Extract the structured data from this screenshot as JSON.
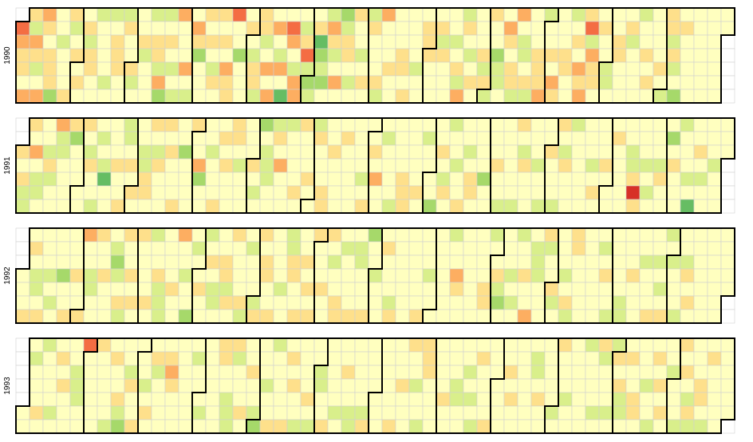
{
  "chart_data": {
    "type": "heatmap",
    "layout": "calendar",
    "years": [
      "1990",
      "1991",
      "1992",
      "1993"
    ],
    "week_start": "sunday",
    "color_scale": [
      "#1a9850",
      "#66bd63",
      "#a6d96a",
      "#d9ef8b",
      "#ffffbf",
      "#fee08b",
      "#fdae61",
      "#f46d43",
      "#d73027"
    ],
    "color_levels": [
      -4,
      -3,
      -2,
      -1,
      0,
      1,
      2,
      3,
      4
    ],
    "empty_color": "#ffffff",
    "grid_color": "#d0d0d0",
    "border_color": "#000000",
    "values_by_year": {
      "1990": [
        3,
        2,
        1,
        1,
        0,
        2,
        1,
        -1,
        2,
        1,
        -1,
        0,
        2,
        2,
        1,
        0,
        1,
        1,
        1,
        -2,
        0,
        0,
        -1,
        0,
        0,
        0,
        1,
        1,
        -1,
        0,
        1,
        0,
        1,
        0,
        0,
        1,
        -1,
        1,
        1,
        0,
        0,
        -1,
        0,
        0,
        0,
        0,
        -1,
        0,
        -1,
        0,
        1,
        1,
        1,
        0,
        0,
        -1,
        1,
        0,
        0,
        1,
        -1,
        0,
        0,
        0,
        1,
        -1,
        0,
        0,
        0,
        -1,
        0,
        1,
        1,
        -1,
        2,
        -2,
        -1,
        0,
        1,
        0,
        -1,
        0,
        -1,
        2,
        0,
        0,
        0,
        2,
        0,
        -1,
        0,
        2,
        1,
        -2,
        0,
        0,
        0,
        1,
        0,
        1,
        0,
        -1,
        1,
        0,
        1,
        0,
        1,
        0,
        2,
        1,
        1,
        3,
        0,
        0,
        -2,
        0,
        0,
        0,
        0,
        1,
        0,
        -1,
        1,
        1,
        -1,
        1,
        1,
        -1,
        0,
        2,
        0,
        2,
        0,
        2,
        0,
        -1,
        2,
        0,
        -3,
        0,
        3,
        2,
        0,
        -1,
        2,
        2,
        0,
        -1,
        1,
        3,
        -1,
        -2,
        -1,
        0,
        1,
        -3,
        -2,
        -1,
        -2,
        0,
        -1,
        2,
        1,
        -1,
        0,
        2,
        0,
        -2,
        -1,
        1,
        1,
        0,
        -1,
        0,
        1,
        0,
        0,
        -1,
        0,
        1,
        0,
        -1,
        1,
        0,
        0,
        0,
        1,
        -1,
        2,
        0,
        0,
        0,
        1,
        0,
        0,
        0,
        0,
        0,
        1,
        1,
        0,
        1,
        0,
        0,
        0,
        0,
        -1,
        0,
        0,
        0,
        1,
        1,
        1,
        0,
        0,
        0,
        0,
        1,
        -1,
        1,
        0,
        0,
        0,
        0,
        0,
        -1,
        0,
        1,
        -1,
        2,
        -1,
        1,
        0,
        -1,
        0,
        1,
        0,
        0,
        0,
        0,
        1,
        -1,
        1,
        -1,
        1,
        0,
        0,
        -2,
        -1,
        -1,
        0,
        0,
        2,
        1,
        0,
        1,
        1,
        -1,
        2,
        0,
        -1,
        -1,
        0,
        1,
        -1,
        0,
        0,
        0,
        1,
        1,
        1,
        2,
        -1,
        0,
        0,
        1,
        0,
        2,
        1,
        0,
        0,
        0,
        1,
        1,
        0,
        0,
        -1,
        0,
        1,
        0,
        2,
        1,
        2,
        1,
        3,
        -1,
        2,
        1,
        1,
        0,
        0,
        1,
        0,
        0,
        -1,
        -1,
        0,
        0,
        0,
        1,
        1,
        0,
        0,
        0,
        0,
        1,
        -1,
        0,
        0,
        0,
        0,
        -1,
        0,
        0,
        1,
        0,
        1,
        0,
        0,
        0,
        0,
        0,
        1,
        0,
        -1,
        1,
        1,
        -1,
        1,
        -1,
        0,
        -2,
        0,
        1
      ],
      "1991": [
        1,
        0,
        1,
        -1,
        -1,
        1,
        0,
        2,
        0,
        -1,
        -1,
        0,
        0,
        0,
        -1,
        1,
        -1,
        0,
        0,
        2,
        -1,
        -1,
        0,
        0,
        0,
        0,
        1,
        -2,
        0,
        0,
        0,
        0,
        0,
        1,
        0,
        -1,
        1,
        0,
        0,
        -1,
        0,
        -1,
        0,
        -1,
        -3,
        0,
        0,
        0,
        0,
        0,
        1,
        0,
        0,
        1,
        -1,
        -1,
        0,
        1,
        0,
        1,
        0,
        0,
        0,
        -1,
        -1,
        1,
        1,
        0,
        1,
        0,
        -1,
        1,
        0,
        0,
        0,
        1,
        0,
        1,
        0,
        0,
        0,
        1,
        0,
        0,
        -2,
        0,
        0,
        0,
        0,
        1,
        0,
        0,
        2,
        -2,
        0,
        0,
        0,
        0,
        -1,
        0,
        0,
        0,
        1,
        0,
        1,
        0,
        1,
        0,
        0,
        0,
        1,
        1,
        0,
        -1,
        0,
        0,
        0,
        0,
        0,
        0,
        1,
        0,
        -1,
        0,
        -2,
        0,
        -1,
        -1,
        -1,
        0,
        0,
        -1,
        1,
        0,
        2,
        0,
        0,
        0,
        -1,
        0,
        0,
        0,
        0,
        1,
        0,
        1,
        0,
        0,
        0,
        1,
        0,
        0,
        -1,
        1,
        0,
        0,
        0,
        1,
        1,
        0,
        0,
        1,
        0,
        0,
        0,
        0,
        0,
        1,
        0,
        0,
        0,
        0,
        0,
        0,
        0,
        0,
        0,
        -1,
        0,
        1,
        0,
        0,
        1,
        0,
        2,
        0,
        0,
        0,
        -1,
        0,
        0,
        0,
        0,
        -1,
        0,
        0,
        0,
        0,
        1,
        1,
        1,
        0,
        0,
        0,
        0,
        0,
        1,
        0,
        0,
        -1,
        0,
        0,
        0,
        0,
        -2,
        0,
        0,
        1,
        0,
        -1,
        1,
        0,
        -1,
        0,
        0,
        -1,
        0,
        0,
        1,
        0,
        0,
        -1,
        0,
        1,
        1,
        0,
        0,
        0,
        0,
        0,
        -2,
        0,
        0,
        0,
        0,
        0,
        1,
        0,
        0,
        -1,
        0,
        0,
        0,
        0,
        0,
        0,
        -1,
        1,
        0,
        -1,
        1,
        0,
        0,
        0,
        0,
        0,
        0,
        -1,
        0,
        0,
        -1,
        0,
        0,
        1,
        0,
        0,
        0,
        -1,
        1,
        0,
        -1,
        1,
        0,
        0,
        0,
        -1,
        0,
        0,
        0,
        0,
        0,
        0,
        0,
        0,
        0,
        -1,
        0,
        1,
        0,
        0,
        0,
        0,
        1,
        0,
        0,
        0,
        0,
        1,
        0,
        0,
        0,
        0,
        0,
        0,
        0,
        -1,
        -1,
        1,
        4,
        1,
        0,
        0,
        0,
        -1,
        0,
        -1,
        0,
        0,
        0,
        0,
        -1,
        1,
        0,
        0,
        0,
        -2,
        0,
        1,
        0,
        0,
        0,
        -1,
        0,
        0,
        0,
        -1,
        0,
        -3,
        0,
        0,
        1,
        0,
        -1,
        0,
        0,
        0,
        0,
        0,
        -1,
        0
      ],
      "1992": [
        0,
        0,
        0,
        1,
        0,
        1,
        0,
        -1,
        -1,
        0,
        1,
        0,
        0,
        0,
        -1,
        0,
        -1,
        0,
        0,
        0,
        0,
        -2,
        0,
        0,
        1,
        0,
        0,
        0,
        1,
        0,
        0,
        1,
        2,
        0,
        0,
        -1,
        -1,
        0,
        0,
        1,
        0,
        0,
        1,
        0,
        0,
        0,
        0,
        -1,
        -2,
        -1,
        0,
        1,
        -1,
        1,
        0,
        0,
        1,
        0,
        1,
        0,
        1,
        0,
        0,
        0,
        0,
        1,
        0,
        -1,
        0,
        0,
        1,
        -1,
        -1,
        -1,
        0,
        0,
        0,
        0,
        1,
        0,
        0,
        2,
        0,
        0,
        -1,
        0,
        0,
        -2,
        0,
        -1,
        0,
        0,
        1,
        0,
        0,
        -1,
        0,
        1,
        0,
        -1,
        -1,
        0,
        0,
        0,
        1,
        1,
        -1,
        1,
        0,
        1,
        0,
        0,
        0,
        0,
        1,
        -1,
        0,
        -1,
        0,
        0,
        0,
        -1,
        1,
        1,
        0,
        1,
        1,
        0,
        0,
        1,
        0,
        0,
        0,
        0,
        -1,
        0,
        0,
        -1,
        -1,
        1,
        1,
        0,
        0,
        1,
        0,
        0,
        1,
        0,
        1,
        0,
        1,
        1,
        0,
        0,
        0,
        1,
        0,
        0,
        1,
        0,
        -1,
        0,
        0,
        1,
        1,
        0,
        -1,
        0,
        0,
        0,
        0,
        1,
        0,
        -1,
        -1,
        0,
        0,
        0,
        1,
        -2,
        0,
        0,
        -1,
        0,
        0,
        0,
        0,
        1,
        0,
        0,
        0,
        -1,
        1,
        0,
        0,
        0,
        0,
        0,
        0,
        0,
        0,
        0,
        0,
        0,
        0,
        0,
        1,
        0,
        0,
        0,
        -1,
        0,
        0,
        0,
        0,
        0,
        0,
        0,
        0,
        0,
        0,
        -1,
        0,
        0,
        2,
        1,
        0,
        0,
        0,
        0,
        0,
        0,
        0,
        0,
        0,
        0,
        0,
        0,
        0,
        1,
        1,
        0,
        -1,
        0,
        0,
        1,
        -1,
        -2,
        0,
        0,
        0,
        0,
        -1,
        0,
        -1,
        0,
        -1,
        0,
        0,
        1,
        0,
        0,
        2,
        0,
        -1,
        -1,
        -1,
        0,
        0,
        0,
        1,
        -1,
        0,
        0,
        1,
        -1,
        0,
        0,
        0,
        0,
        -1,
        0,
        1,
        -1,
        1,
        1,
        0,
        0,
        0,
        0,
        0,
        0,
        0,
        0,
        0,
        0,
        0,
        0,
        0,
        -1,
        0,
        1,
        0,
        0,
        -1,
        0,
        0,
        0,
        0,
        0,
        -1,
        -1,
        0,
        0,
        0,
        1,
        0,
        0,
        0,
        0,
        0,
        -1,
        0,
        0,
        0,
        1,
        0,
        0,
        -1,
        0,
        -1,
        0,
        1,
        -1,
        0,
        -1,
        0,
        0,
        0,
        -1,
        0,
        0,
        -1,
        1,
        0,
        1,
        0,
        0
      ],
      "1993": [
        0,
        0,
        0,
        -1,
        0,
        0,
        0,
        1,
        0,
        -1,
        0,
        0,
        0,
        0,
        -1,
        0,
        0,
        1,
        0,
        1,
        0,
        0,
        0,
        0,
        0,
        -1,
        -1,
        -1,
        0,
        0,
        3,
        0,
        0,
        0,
        0,
        0,
        0,
        1,
        0,
        0,
        0,
        0,
        0,
        -1,
        0,
        1,
        0,
        0,
        1,
        -1,
        -2,
        0,
        0,
        -1,
        1,
        0,
        0,
        1,
        0,
        0,
        0,
        -1,
        0,
        1,
        0,
        0,
        1,
        -1,
        0,
        0,
        0,
        0,
        0,
        1,
        2,
        1,
        0,
        0,
        0,
        0,
        0,
        0,
        0,
        0,
        0,
        0,
        0,
        -1,
        0,
        0,
        0,
        -1,
        0,
        0,
        0,
        0,
        0,
        0,
        0,
        0,
        1,
        1,
        0,
        0,
        -1,
        -1,
        -1,
        1,
        -1,
        0,
        0,
        0,
        1,
        0,
        0,
        0,
        1,
        0,
        0,
        -1,
        -2,
        0,
        0,
        0,
        -1,
        0,
        0,
        1,
        -1,
        0,
        0,
        0,
        0,
        0,
        1,
        0,
        1,
        0,
        1,
        0,
        0,
        -1,
        0,
        0,
        0,
        0,
        1,
        0,
        -1,
        0,
        0,
        -1,
        -1,
        0,
        0,
        1,
        0,
        0,
        0,
        0,
        0,
        -1,
        0,
        0,
        0,
        1,
        0,
        0,
        -1,
        -1,
        0,
        0,
        0,
        0,
        0,
        -1,
        1,
        0,
        0,
        0,
        0,
        0,
        0,
        0,
        0,
        0,
        0,
        0,
        0,
        0,
        1,
        0,
        0,
        0,
        1,
        0,
        0,
        0,
        1,
        0,
        0,
        -1,
        0,
        0,
        -1,
        1,
        1,
        1,
        0,
        0,
        0,
        0,
        0,
        0,
        0,
        0,
        1,
        0,
        0,
        0,
        0,
        0,
        -1,
        -1,
        0,
        0,
        0,
        0,
        -1,
        0,
        -1,
        0,
        -1,
        0,
        1,
        0,
        0,
        0,
        0,
        1,
        0,
        0,
        0,
        0,
        0,
        0,
        0,
        0,
        0,
        1,
        0,
        1,
        0,
        0,
        0,
        0,
        0,
        0,
        0,
        0,
        0,
        0,
        -1,
        -1,
        0,
        1,
        0,
        0,
        0,
        0,
        0,
        0,
        0,
        -1,
        0,
        1,
        0,
        0,
        0,
        -1,
        0,
        0,
        0,
        0,
        0,
        0,
        0,
        0,
        0,
        -1,
        0,
        0,
        0,
        0,
        -1,
        0,
        1,
        -1,
        0,
        0,
        0,
        -1,
        0,
        -1,
        1,
        0,
        1,
        -1,
        -1,
        0,
        0,
        1,
        0,
        0,
        1,
        1,
        0,
        0,
        0,
        0,
        -1,
        0,
        0,
        -1,
        0,
        1,
        0,
        1,
        0,
        1,
        0,
        0,
        0,
        -1,
        0,
        0,
        0,
        -1,
        1,
        0,
        1,
        0,
        -1,
        1,
        -1,
        0,
        0,
        0,
        1,
        1,
        0,
        -1,
        0,
        1,
        0,
        0,
        0
      ]
    }
  }
}
